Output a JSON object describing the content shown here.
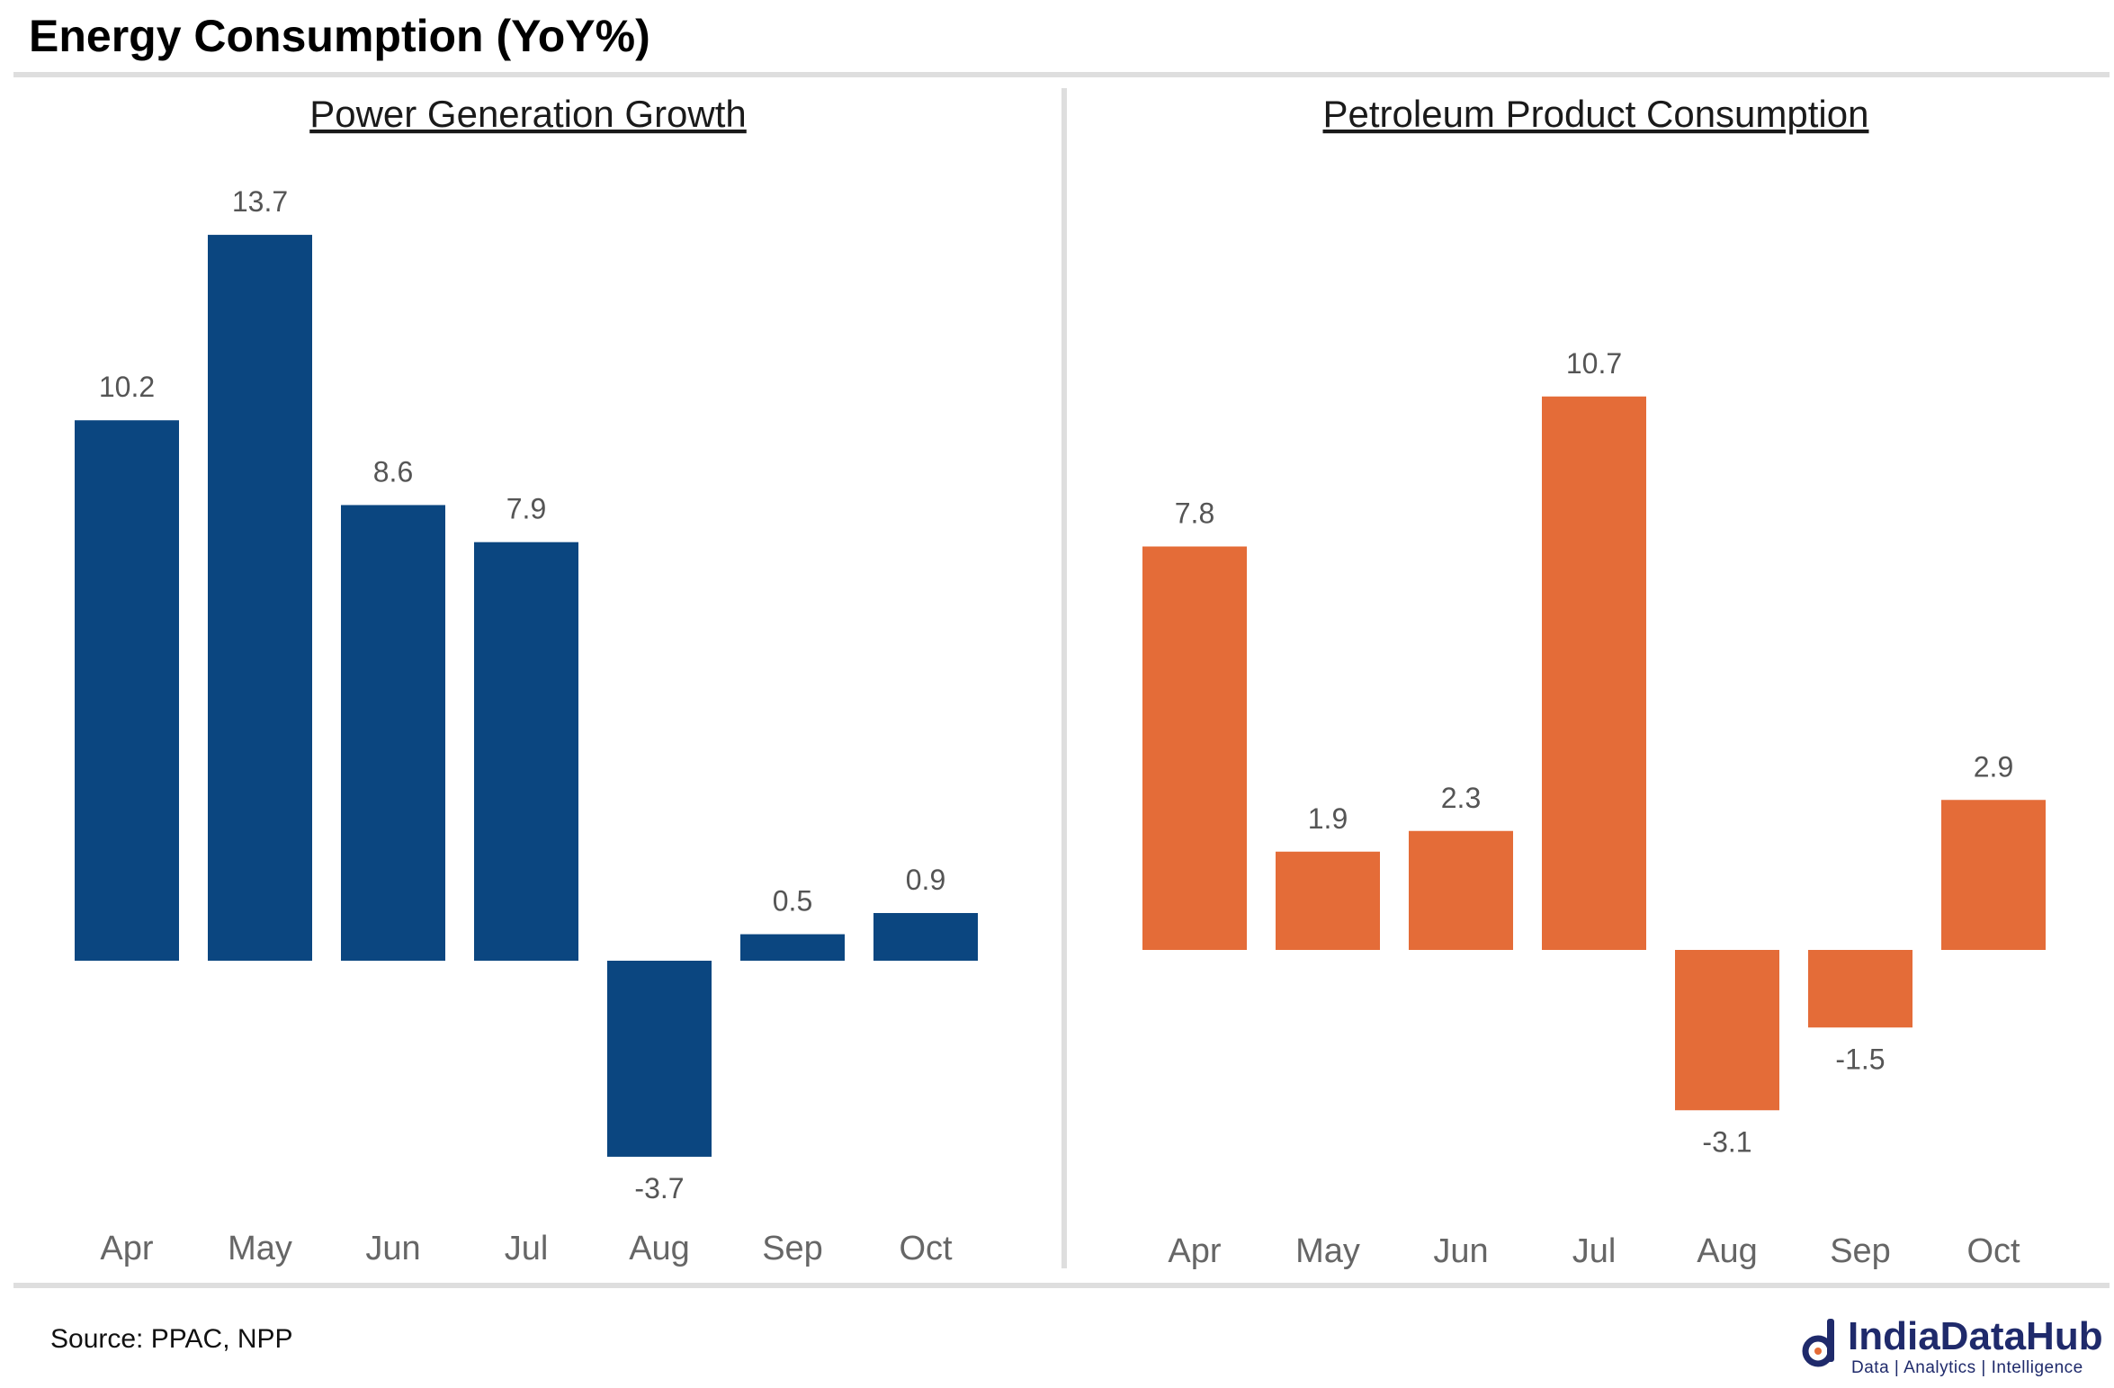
{
  "title": "Energy Consumption (YoY%)",
  "source": "Source: PPAC, NPP",
  "brand": {
    "name": "IndiaDataHub",
    "tagline": "Data | Analytics | Intelligence",
    "color": "#1f2a6b"
  },
  "chart_data": [
    {
      "type": "bar",
      "title": "Power Generation Growth",
      "categories": [
        "Apr",
        "May",
        "Jun",
        "Jul",
        "Aug",
        "Sep",
        "Oct"
      ],
      "values": [
        10.2,
        13.7,
        8.6,
        7.9,
        -3.7,
        0.5,
        0.9
      ],
      "value_labels": [
        "10.2",
        "13.7",
        "8.6",
        "7.9",
        "-3.7",
        "0.5",
        "0.9"
      ],
      "color": "#0b4680",
      "xlabel": "",
      "ylabel": "",
      "ylim": [
        -3.7,
        13.7
      ],
      "grid": false,
      "legend": "none"
    },
    {
      "type": "bar",
      "title": "Petroleum Product Consumption",
      "categories": [
        "Apr",
        "May",
        "Jun",
        "Jul",
        "Aug",
        "Sep",
        "Oct"
      ],
      "values": [
        7.8,
        1.9,
        2.3,
        10.7,
        -3.1,
        -1.5,
        2.9
      ],
      "value_labels": [
        "7.8",
        "1.9",
        "2.3",
        "10.7",
        "-3.1",
        "-1.5",
        "2.9"
      ],
      "color": "#e46c38",
      "xlabel": "",
      "ylabel": "",
      "ylim": [
        -3.1,
        10.7
      ],
      "grid": false,
      "legend": "none"
    }
  ]
}
